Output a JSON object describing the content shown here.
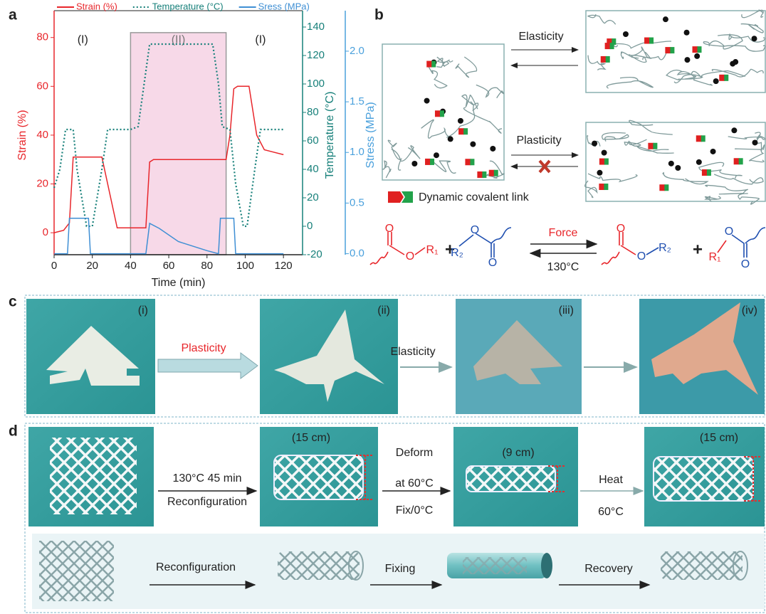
{
  "panel_labels": [
    "a",
    "b",
    "c",
    "d"
  ],
  "chart_data": {
    "type": "line",
    "xlabel": "Time (min)",
    "ylabel": "Strain (%)",
    "y2label": "Temperature (°C)",
    "y3label": "Stress (MPa)",
    "xlim": [
      0,
      130
    ],
    "xticks": [
      0,
      20,
      40,
      60,
      80,
      100,
      120
    ],
    "ylim": [
      -9,
      91
    ],
    "yticks": [
      0,
      20,
      40,
      60,
      80
    ],
    "y2lim": [
      -20,
      151.5
    ],
    "y2ticks": [
      -20,
      0,
      20,
      40,
      60,
      80,
      100,
      120,
      140
    ],
    "y3lim": [
      -0.01,
      2.4
    ],
    "y3ticks": [
      {
        "value": 0,
        "label": "0.0"
      },
      {
        "value": 0.5,
        "label": "0.5"
      },
      {
        "value": 1,
        "label": "1.0"
      },
      {
        "value": 1.5,
        "label": "1.5"
      },
      {
        "value": 2,
        "label": "2.0"
      }
    ],
    "axis_colors": {
      "y": "#e8262b",
      "y2": "#17807a",
      "y3": "#4aa0dc"
    },
    "legend": "top",
    "highlight": {
      "x": [
        40,
        90
      ],
      "y": [
        -9,
        82
      ],
      "color": "#f7d9e8"
    },
    "annotations": [
      {
        "text": "(I)",
        "x": 15,
        "y": 79
      },
      {
        "text": "(II)",
        "x": 65,
        "y": 79
      },
      {
        "text": "(I)",
        "x": 108,
        "y": 79
      }
    ],
    "series": [
      {
        "name": "Strain (%)",
        "color": "#e8262b",
        "axis": "y",
        "style": "solid",
        "x": [
          0,
          5,
          8,
          10,
          25,
          33,
          48,
          50,
          52,
          90,
          92,
          94,
          96,
          102,
          104,
          106,
          110,
          120
        ],
        "values": [
          0,
          1,
          4,
          31,
          31,
          2,
          2,
          29,
          30,
          30,
          40,
          59,
          60,
          60,
          50,
          40,
          34,
          32
        ]
      },
      {
        "name": "Temperature (°C)",
        "color": "#17807a",
        "axis": "y2",
        "style": "dotted",
        "x": [
          0,
          3,
          6,
          10,
          12,
          17,
          20,
          25,
          28,
          40,
          44,
          50,
          83,
          86,
          88,
          92,
          95,
          99,
          101,
          105,
          108,
          120
        ],
        "values": [
          27,
          40,
          68,
          68,
          40,
          0,
          0,
          40,
          68,
          68,
          70,
          128,
          128,
          100,
          70,
          68,
          30,
          0,
          0,
          40,
          68,
          68
        ]
      },
      {
        "name": "Sress (MPa)",
        "color": "#3f8fd4",
        "axis": "y3",
        "style": "solid",
        "x": [
          0,
          7,
          8,
          18,
          19,
          48,
          50,
          55,
          65,
          80,
          86,
          87,
          94,
          95,
          120
        ],
        "values": [
          0,
          0,
          0.35,
          0.35,
          0,
          0,
          0.3,
          0.25,
          0.12,
          0.03,
          0,
          0.35,
          0.35,
          0,
          0
        ]
      }
    ]
  },
  "panel_b": {
    "elasticity": "Elasticity",
    "plasticity": "Plasticity",
    "legend": "Dynamic covalent link",
    "reaction": {
      "reactant_1": [
        "O",
        "O",
        "R₁"
      ],
      "plus_1": "+",
      "reactant_2": [
        "O",
        "R₂",
        "O"
      ],
      "forward": "Force",
      "reverse": "130°C",
      "product_1": [
        "O",
        "O",
        "R₂"
      ],
      "plus_2": "+",
      "product_2": [
        "O",
        "R₁",
        "O"
      ]
    }
  },
  "panel_c": {
    "labels": [
      "(i)",
      "(ii)",
      "(iii)",
      "(iv)"
    ],
    "arrows": [
      "Plasticity",
      "Elasticity"
    ]
  },
  "panel_d": {
    "sizes": [
      "(15 cm)",
      "(9 cm)",
      "(15 cm)"
    ],
    "step_1": [
      "130°C 45 min",
      "Reconfiguration"
    ],
    "step_2": [
      "Deform",
      "at 60°C",
      "Fix/0°C"
    ],
    "step_3": [
      "Heat",
      "60°C"
    ],
    "schematic": [
      "Reconfiguration",
      "Fixing",
      "Recovery"
    ]
  }
}
